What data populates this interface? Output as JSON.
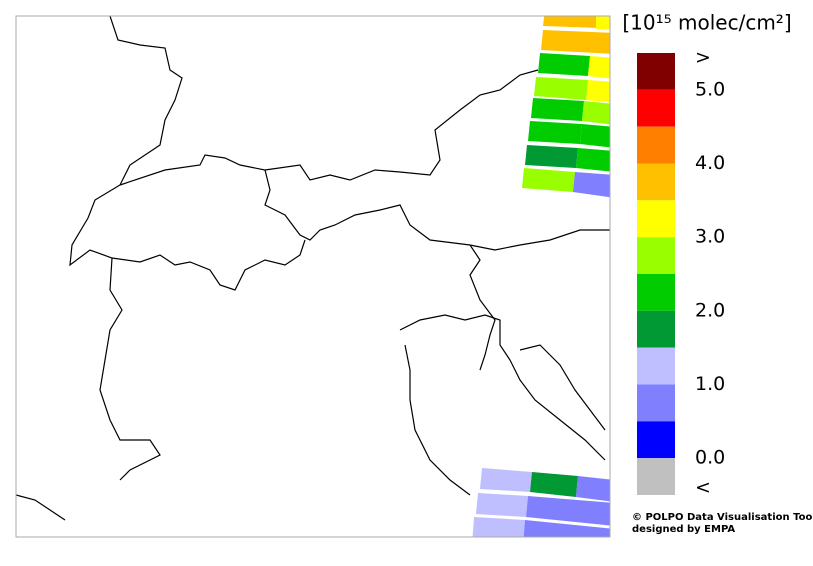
{
  "colorbar": {
    "unit_label": "[10¹⁵ molec/cm²]",
    "colors": [
      "#800000",
      "#ff0000",
      "#ff8000",
      "#ffc000",
      "#ffff00",
      "#99ff00",
      "#00cc00",
      "#009933",
      "#bfbfff",
      "#8080ff",
      "#0000ff",
      "#c0c0c0"
    ],
    "labels": [
      ">",
      "5.0",
      "4.0",
      "3.0",
      "2.0",
      "1.0",
      "0.0",
      "<"
    ]
  },
  "credit": {
    "line1": "© POLPO Data Visualisation Tool",
    "line2": "designed by EMPA"
  }
}
